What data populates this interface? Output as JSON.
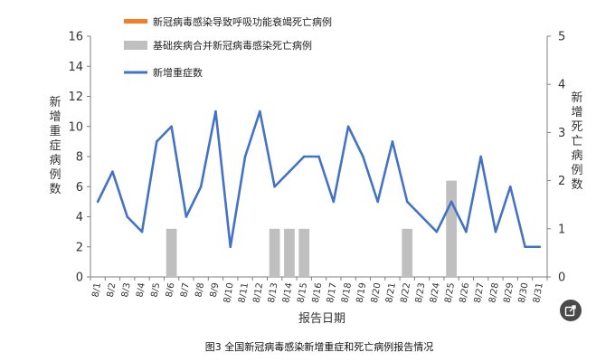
{
  "chart_data": {
    "type": "bar+line",
    "categories": [
      "8/1",
      "8/2",
      "8/3",
      "8/4",
      "8/5",
      "8/6",
      "8/7",
      "8/8",
      "8/9",
      "8/10",
      "8/11",
      "8/12",
      "8/13",
      "8/14",
      "8/15",
      "8/16",
      "8/17",
      "8/18",
      "8/19",
      "8/20",
      "8/21",
      "8/22",
      "8/23",
      "8/24",
      "8/25",
      "8/26",
      "8/27",
      "8/28",
      "8/29",
      "8/30",
      "8/31"
    ],
    "series": [
      {
        "name": "新冠病毒感染导致呼吸功能衰竭死亡病例",
        "axis": "right",
        "render": "bar",
        "color": "#f07f2a",
        "values": [
          0,
          0,
          0,
          0,
          0,
          0,
          0,
          0,
          0,
          0,
          0,
          0,
          0,
          0,
          0,
          0,
          0,
          0,
          0,
          0,
          0,
          0,
          0,
          0,
          0,
          0,
          0,
          0,
          0,
          0,
          0
        ]
      },
      {
        "name": "基础疾病合并新冠病毒感染死亡病例",
        "axis": "right",
        "render": "bar",
        "color": "#bfbfbf",
        "values": [
          0,
          0,
          0,
          0,
          0,
          1,
          0,
          0,
          0,
          0,
          0,
          0,
          1,
          1,
          1,
          0,
          0,
          0,
          0,
          0,
          0,
          1,
          0,
          0,
          2,
          0,
          0,
          0,
          0,
          0,
          0
        ]
      },
      {
        "name": "新增重症数",
        "axis": "left",
        "render": "line",
        "color": "#4472c4",
        "values": [
          5,
          7,
          4,
          3,
          9,
          10,
          4,
          6,
          11,
          2,
          8,
          11,
          6,
          7,
          8,
          8,
          5,
          10,
          8,
          5,
          9,
          5,
          4,
          3,
          5,
          3,
          8,
          3,
          6,
          2,
          2
        ]
      }
    ],
    "ylabel": "新增重症病例数",
    "y2label": "新增死亡病例数",
    "xlabel": "报告日期",
    "ylim": [
      0,
      16
    ],
    "y2lim": [
      0,
      5
    ],
    "yticks": [
      0,
      2,
      4,
      6,
      8,
      10,
      12,
      14,
      16
    ],
    "y2ticks": [
      0,
      1,
      2,
      3,
      4,
      5
    ],
    "legend_position": "top-left",
    "grid": false,
    "caption": "图3  全国新冠病毒感染新增重症和死亡病例报告情况"
  },
  "ui": {
    "share_icon": "share-icon"
  }
}
